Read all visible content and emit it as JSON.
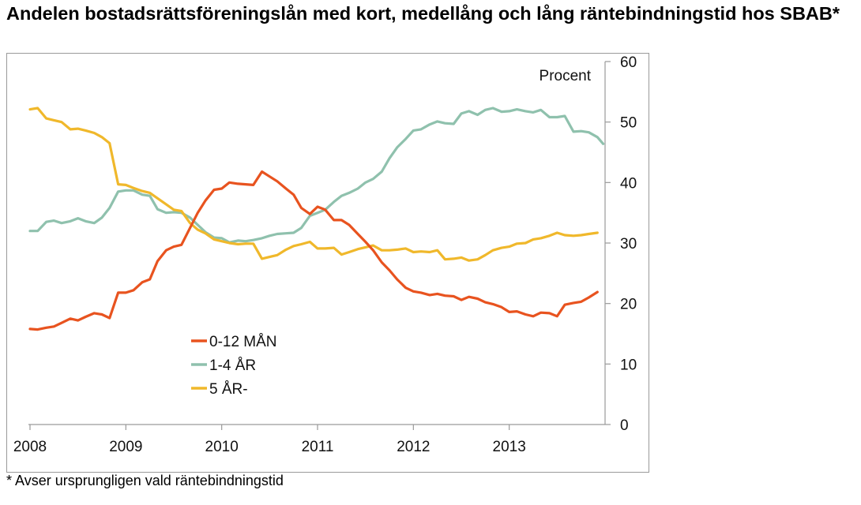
{
  "title": "Andelen bostadsrättsföreningslån med kort, medellång och lång räntebindningstid hos SBAB*",
  "footnote": "* Avser ursprungligen vald räntebindningstid",
  "colors": {
    "series_0_12": "#e8531f",
    "series_1_4": "#8fc1ad",
    "series_5": "#f0b82b"
  },
  "chart_data": {
    "type": "line",
    "title": "Andelen bostadsrättsföreningslån med kort, medellång och lång räntebindningstid hos SBAB*",
    "unit_label": "Procent",
    "xlabel": "",
    "ylabel": "",
    "x_ticks": [
      "2008",
      "2009",
      "2010",
      "2011",
      "2012",
      "2013"
    ],
    "xlim": [
      2008.0,
      2014.0
    ],
    "ylim": [
      0,
      60
    ],
    "y_ticks": [
      0,
      10,
      20,
      30,
      40,
      50,
      60
    ],
    "y_axis_side": "right",
    "grid": false,
    "legend_position": "lower-left",
    "series": [
      {
        "name": "0-12 MÅN",
        "color": "#e8531f",
        "points": [
          [
            2008.0,
            15.8
          ],
          [
            2008.08,
            15.7
          ],
          [
            2008.17,
            16.0
          ],
          [
            2008.25,
            16.2
          ],
          [
            2008.33,
            16.8
          ],
          [
            2008.42,
            17.5
          ],
          [
            2008.5,
            17.2
          ],
          [
            2008.58,
            17.8
          ],
          [
            2008.67,
            18.4
          ],
          [
            2008.75,
            18.2
          ],
          [
            2008.83,
            17.6
          ],
          [
            2008.92,
            21.8
          ],
          [
            2009.0,
            21.8
          ],
          [
            2009.08,
            22.2
          ],
          [
            2009.17,
            23.5
          ],
          [
            2009.25,
            24.0
          ],
          [
            2009.33,
            27.0
          ],
          [
            2009.42,
            28.8
          ],
          [
            2009.5,
            29.4
          ],
          [
            2009.58,
            29.7
          ],
          [
            2009.67,
            32.5
          ],
          [
            2009.75,
            35.0
          ],
          [
            2009.83,
            37.0
          ],
          [
            2009.92,
            38.8
          ],
          [
            2010.0,
            39.0
          ],
          [
            2010.08,
            40.0
          ],
          [
            2010.17,
            39.8
          ],
          [
            2010.25,
            39.7
          ],
          [
            2010.33,
            39.6
          ],
          [
            2010.42,
            41.8
          ],
          [
            2010.5,
            41.0
          ],
          [
            2010.58,
            40.2
          ],
          [
            2010.67,
            39.0
          ],
          [
            2010.75,
            38.0
          ],
          [
            2010.83,
            35.8
          ],
          [
            2010.92,
            34.8
          ],
          [
            2011.0,
            36.0
          ],
          [
            2011.08,
            35.5
          ],
          [
            2011.17,
            33.8
          ],
          [
            2011.25,
            33.8
          ],
          [
            2011.33,
            33.0
          ],
          [
            2011.42,
            31.5
          ],
          [
            2011.5,
            30.2
          ],
          [
            2011.58,
            28.8
          ],
          [
            2011.67,
            26.8
          ],
          [
            2011.75,
            25.5
          ],
          [
            2011.83,
            24.0
          ],
          [
            2011.92,
            22.6
          ],
          [
            2012.0,
            22.0
          ],
          [
            2012.08,
            21.8
          ],
          [
            2012.17,
            21.4
          ],
          [
            2012.25,
            21.6
          ],
          [
            2012.33,
            21.3
          ],
          [
            2012.42,
            21.2
          ],
          [
            2012.5,
            20.6
          ],
          [
            2012.58,
            21.1
          ],
          [
            2012.67,
            20.8
          ],
          [
            2012.75,
            20.2
          ],
          [
            2012.83,
            19.9
          ],
          [
            2012.92,
            19.4
          ],
          [
            2013.0,
            18.6
          ],
          [
            2013.08,
            18.7
          ],
          [
            2013.17,
            18.2
          ],
          [
            2013.25,
            17.9
          ],
          [
            2013.33,
            18.5
          ],
          [
            2013.42,
            18.4
          ],
          [
            2013.5,
            17.9
          ],
          [
            2013.58,
            19.8
          ],
          [
            2013.67,
            20.1
          ],
          [
            2013.75,
            20.3
          ],
          [
            2013.83,
            21.0
          ],
          [
            2013.92,
            21.9
          ]
        ]
      },
      {
        "name": "1-4 ÅR",
        "color": "#8fc1ad",
        "points": [
          [
            2008.0,
            32.0
          ],
          [
            2008.08,
            32.0
          ],
          [
            2008.17,
            33.5
          ],
          [
            2008.25,
            33.7
          ],
          [
            2008.33,
            33.3
          ],
          [
            2008.42,
            33.6
          ],
          [
            2008.5,
            34.1
          ],
          [
            2008.58,
            33.6
          ],
          [
            2008.67,
            33.3
          ],
          [
            2008.75,
            34.2
          ],
          [
            2008.83,
            35.8
          ],
          [
            2008.92,
            38.5
          ],
          [
            2009.0,
            38.7
          ],
          [
            2009.08,
            38.7
          ],
          [
            2009.17,
            38.0
          ],
          [
            2009.25,
            37.8
          ],
          [
            2009.33,
            35.6
          ],
          [
            2009.42,
            35.0
          ],
          [
            2009.5,
            35.1
          ],
          [
            2009.58,
            35.0
          ],
          [
            2009.67,
            34.2
          ],
          [
            2009.75,
            33.0
          ],
          [
            2009.83,
            31.8
          ],
          [
            2009.92,
            30.9
          ],
          [
            2010.0,
            30.8
          ],
          [
            2010.08,
            30.1
          ],
          [
            2010.17,
            30.4
          ],
          [
            2010.25,
            30.3
          ],
          [
            2010.33,
            30.5
          ],
          [
            2010.42,
            30.8
          ],
          [
            2010.5,
            31.2
          ],
          [
            2010.58,
            31.5
          ],
          [
            2010.67,
            31.6
          ],
          [
            2010.75,
            31.7
          ],
          [
            2010.83,
            32.5
          ],
          [
            2010.92,
            34.5
          ],
          [
            2011.0,
            35.0
          ],
          [
            2011.08,
            35.5
          ],
          [
            2011.17,
            36.8
          ],
          [
            2011.25,
            37.8
          ],
          [
            2011.33,
            38.3
          ],
          [
            2011.42,
            39.0
          ],
          [
            2011.5,
            40.0
          ],
          [
            2011.58,
            40.6
          ],
          [
            2011.67,
            41.8
          ],
          [
            2011.75,
            44.0
          ],
          [
            2011.83,
            45.8
          ],
          [
            2011.92,
            47.2
          ],
          [
            2012.0,
            48.6
          ],
          [
            2012.08,
            48.8
          ],
          [
            2012.17,
            49.6
          ],
          [
            2012.25,
            50.1
          ],
          [
            2012.33,
            49.8
          ],
          [
            2012.42,
            49.7
          ],
          [
            2012.5,
            51.4
          ],
          [
            2012.58,
            51.8
          ],
          [
            2012.67,
            51.2
          ],
          [
            2012.75,
            52.0
          ],
          [
            2012.83,
            52.3
          ],
          [
            2012.92,
            51.7
          ],
          [
            2013.0,
            51.8
          ],
          [
            2013.08,
            52.1
          ],
          [
            2013.17,
            51.8
          ],
          [
            2013.25,
            51.6
          ],
          [
            2013.33,
            52.0
          ],
          [
            2013.42,
            50.8
          ],
          [
            2013.5,
            50.8
          ],
          [
            2013.58,
            51.0
          ],
          [
            2013.67,
            48.4
          ],
          [
            2013.75,
            48.5
          ],
          [
            2013.83,
            48.3
          ],
          [
            2013.92,
            47.5
          ],
          [
            2013.98,
            46.4
          ]
        ]
      },
      {
        "name": "5 ÅR-",
        "color": "#f0b82b",
        "points": [
          [
            2008.0,
            52.1
          ],
          [
            2008.08,
            52.3
          ],
          [
            2008.17,
            50.6
          ],
          [
            2008.25,
            50.3
          ],
          [
            2008.33,
            50.0
          ],
          [
            2008.42,
            48.8
          ],
          [
            2008.5,
            48.9
          ],
          [
            2008.58,
            48.6
          ],
          [
            2008.67,
            48.2
          ],
          [
            2008.75,
            47.5
          ],
          [
            2008.83,
            46.5
          ],
          [
            2008.92,
            39.7
          ],
          [
            2009.0,
            39.6
          ],
          [
            2009.08,
            39.1
          ],
          [
            2009.17,
            38.6
          ],
          [
            2009.25,
            38.3
          ],
          [
            2009.33,
            37.4
          ],
          [
            2009.42,
            36.4
          ],
          [
            2009.5,
            35.5
          ],
          [
            2009.58,
            35.3
          ],
          [
            2009.67,
            33.3
          ],
          [
            2009.75,
            32.2
          ],
          [
            2009.83,
            31.6
          ],
          [
            2009.92,
            30.6
          ],
          [
            2010.0,
            30.3
          ],
          [
            2010.08,
            30.0
          ],
          [
            2010.17,
            29.8
          ],
          [
            2010.25,
            29.9
          ],
          [
            2010.33,
            29.9
          ],
          [
            2010.42,
            27.4
          ],
          [
            2010.5,
            27.7
          ],
          [
            2010.58,
            28.0
          ],
          [
            2010.67,
            28.9
          ],
          [
            2010.75,
            29.5
          ],
          [
            2010.83,
            29.8
          ],
          [
            2010.92,
            30.2
          ],
          [
            2011.0,
            29.1
          ],
          [
            2011.08,
            29.1
          ],
          [
            2011.17,
            29.2
          ],
          [
            2011.25,
            28.1
          ],
          [
            2011.33,
            28.5
          ],
          [
            2011.42,
            29.0
          ],
          [
            2011.5,
            29.3
          ],
          [
            2011.58,
            29.6
          ],
          [
            2011.67,
            28.8
          ],
          [
            2011.75,
            28.8
          ],
          [
            2011.83,
            28.9
          ],
          [
            2011.92,
            29.1
          ],
          [
            2012.0,
            28.5
          ],
          [
            2012.08,
            28.6
          ],
          [
            2012.17,
            28.5
          ],
          [
            2012.25,
            28.8
          ],
          [
            2012.33,
            27.3
          ],
          [
            2012.42,
            27.4
          ],
          [
            2012.5,
            27.6
          ],
          [
            2012.58,
            27.1
          ],
          [
            2012.67,
            27.3
          ],
          [
            2012.75,
            28.0
          ],
          [
            2012.83,
            28.8
          ],
          [
            2012.92,
            29.2
          ],
          [
            2013.0,
            29.4
          ],
          [
            2013.08,
            29.9
          ],
          [
            2013.17,
            30.0
          ],
          [
            2013.25,
            30.6
          ],
          [
            2013.33,
            30.8
          ],
          [
            2013.42,
            31.2
          ],
          [
            2013.5,
            31.7
          ],
          [
            2013.58,
            31.3
          ],
          [
            2013.67,
            31.2
          ],
          [
            2013.75,
            31.3
          ],
          [
            2013.83,
            31.5
          ],
          [
            2013.92,
            31.7
          ]
        ]
      }
    ]
  }
}
